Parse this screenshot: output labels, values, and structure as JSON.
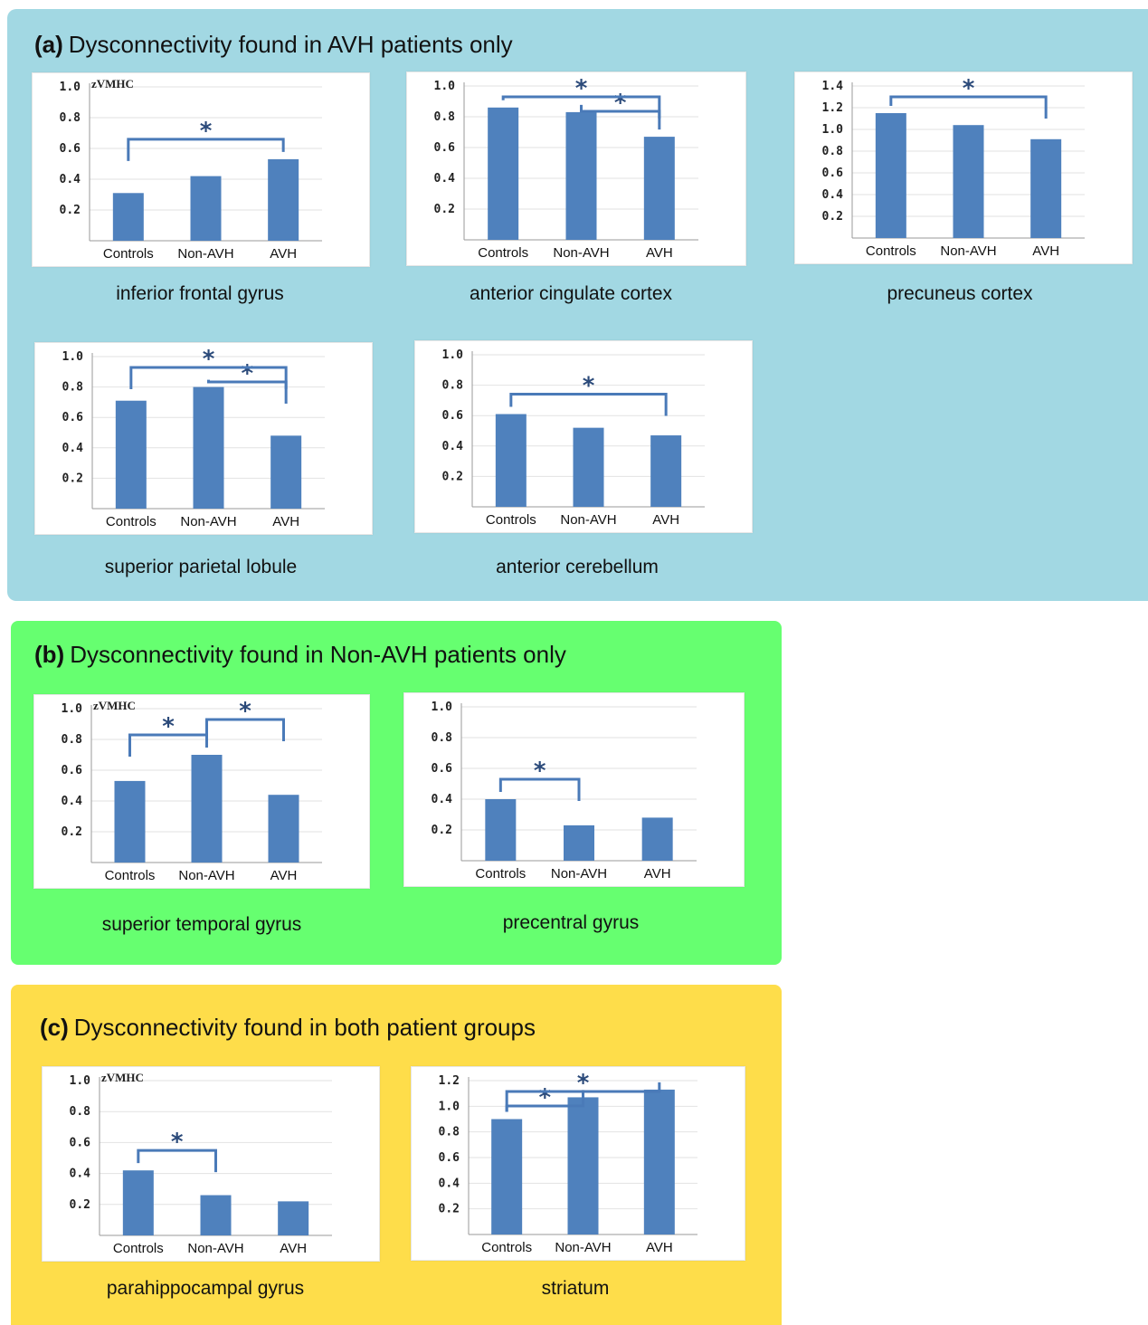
{
  "colors": {
    "bar": "#4f81bd",
    "bracket": "#4a7ab8",
    "star": "#2b4a7a"
  },
  "panels": [
    {
      "letter": "(a)",
      "title": "Dysconnectivity found in AVH patients only",
      "background": "#a2d8e3"
    },
    {
      "letter": "(b)",
      "title": "Dysconnectivity found in Non-AVH patients only",
      "background": "#66ff70"
    },
    {
      "letter": "(c)",
      "title": "Dysconnectivity found in both patient groups",
      "background": "#fedd4a"
    }
  ],
  "chart_data": [
    {
      "type": "bar",
      "panel": "(a)",
      "title": "inferior frontal gyrus",
      "ylabel": "zVMHC",
      "categories": [
        "Controls",
        "Non-AVH",
        "AVH"
      ],
      "values": [
        0.31,
        0.42,
        0.53
      ],
      "ylim": [
        0,
        1.0
      ],
      "yticks": [
        "1.0",
        "0.8",
        "0.6",
        "0.4",
        "0.2"
      ],
      "significance": [
        {
          "from": "Controls",
          "to": "AVH",
          "label": "*"
        }
      ]
    },
    {
      "type": "bar",
      "panel": "(a)",
      "title": "anterior cingulate cortex",
      "ylabel": "",
      "categories": [
        "Controls",
        "Non-AVH",
        "AVH"
      ],
      "values": [
        0.86,
        0.83,
        0.67
      ],
      "ylim": [
        0,
        1.0
      ],
      "yticks": [
        "1.0",
        "0.8",
        "0.6",
        "0.4",
        "0.2"
      ],
      "significance": [
        {
          "from": "Controls",
          "to": "AVH",
          "label": "*"
        },
        {
          "from": "Non-AVH",
          "to": "AVH",
          "label": "*"
        }
      ]
    },
    {
      "type": "bar",
      "panel": "(a)",
      "title": "precuneus cortex",
      "ylabel": "",
      "categories": [
        "Controls",
        "Non-AVH",
        "AVH"
      ],
      "values": [
        1.15,
        1.04,
        0.91
      ],
      "ylim": [
        0,
        1.4
      ],
      "yticks": [
        "1.4",
        "1.2",
        "1.0",
        "0.8",
        "0.6",
        "0.4",
        "0.2"
      ],
      "significance": [
        {
          "from": "Controls",
          "to": "AVH",
          "label": "*"
        }
      ]
    },
    {
      "type": "bar",
      "panel": "(a)",
      "title": "superior parietal lobule",
      "ylabel": "",
      "categories": [
        "Controls",
        "Non-AVH",
        "AVH"
      ],
      "values": [
        0.71,
        0.8,
        0.48
      ],
      "ylim": [
        0,
        1.0
      ],
      "yticks": [
        "1.0",
        "0.8",
        "0.6",
        "0.4",
        "0.2"
      ],
      "significance": [
        {
          "from": "Controls",
          "to": "AVH",
          "label": "*"
        },
        {
          "from": "Non-AVH",
          "to": "AVH",
          "label": "*"
        }
      ]
    },
    {
      "type": "bar",
      "panel": "(a)",
      "title": "anterior cerebellum",
      "ylabel": "",
      "categories": [
        "Controls",
        "Non-AVH",
        "AVH"
      ],
      "values": [
        0.61,
        0.52,
        0.47
      ],
      "ylim": [
        0,
        1.0
      ],
      "yticks": [
        "1.0",
        "0.8",
        "0.6",
        "0.4",
        "0.2"
      ],
      "significance": [
        {
          "from": "Controls",
          "to": "AVH",
          "label": "*"
        }
      ]
    },
    {
      "type": "bar",
      "panel": "(b)",
      "title": "superior temporal gyrus",
      "ylabel": "zVMHC",
      "categories": [
        "Controls",
        "Non-AVH",
        "AVH"
      ],
      "values": [
        0.53,
        0.7,
        0.44
      ],
      "ylim": [
        0,
        1.0
      ],
      "yticks": [
        "1.0",
        "0.8",
        "0.6",
        "0.4",
        "0.2"
      ],
      "significance": [
        {
          "from": "Controls",
          "to": "Non-AVH",
          "label": "*"
        },
        {
          "from": "Non-AVH",
          "to": "AVH",
          "label": "*"
        }
      ]
    },
    {
      "type": "bar",
      "panel": "(b)",
      "title": "precentral gyrus",
      "ylabel": "",
      "categories": [
        "Controls",
        "Non-AVH",
        "AVH"
      ],
      "values": [
        0.4,
        0.23,
        0.28
      ],
      "ylim": [
        0,
        1.0
      ],
      "yticks": [
        "1.0",
        "0.8",
        "0.6",
        "0.4",
        "0.2"
      ],
      "significance": [
        {
          "from": "Controls",
          "to": "Non-AVH",
          "label": "*"
        }
      ]
    },
    {
      "type": "bar",
      "panel": "(c)",
      "title": "parahippocampal gyrus",
      "ylabel": "zVMHC",
      "categories": [
        "Controls",
        "Non-AVH",
        "AVH"
      ],
      "values": [
        0.42,
        0.26,
        0.22
      ],
      "ylim": [
        0,
        1.0
      ],
      "yticks": [
        "1.0",
        "0.8",
        "0.6",
        "0.4",
        "0.2"
      ],
      "significance": [
        {
          "from": "Controls",
          "to": "Non-AVH",
          "label": "*"
        }
      ]
    },
    {
      "type": "bar",
      "panel": "(c)",
      "title": "striatum",
      "ylabel": "",
      "categories": [
        "Controls",
        "Non-AVH",
        "AVH"
      ],
      "values": [
        0.9,
        1.07,
        1.13
      ],
      "ylim": [
        0,
        1.2
      ],
      "yticks": [
        "1.2",
        "1.0",
        "0.8",
        "0.6",
        "0.4",
        "0.2"
      ],
      "significance": [
        {
          "from": "Controls",
          "to": "Non-AVH",
          "label": "*"
        },
        {
          "from": "Controls",
          "to": "AVH",
          "label": "*"
        }
      ]
    }
  ]
}
